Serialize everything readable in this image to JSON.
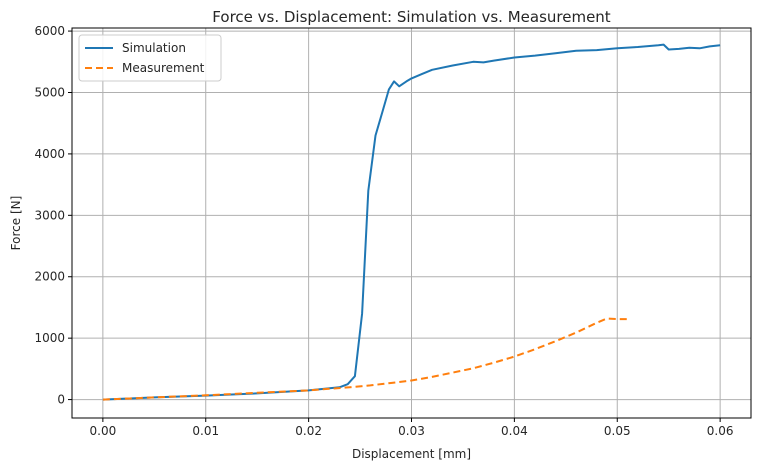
{
  "chart_data": {
    "type": "line",
    "title": "Force vs. Displacement: Simulation vs. Measurement",
    "xlabel": "Displacement [mm]",
    "ylabel": "Force [N]",
    "xlim": [
      -0.003,
      0.063
    ],
    "ylim": [
      -300,
      6050
    ],
    "xticks": [
      0.0,
      0.01,
      0.02,
      0.03,
      0.04,
      0.05,
      0.06
    ],
    "xtick_labels": [
      "0.00",
      "0.01",
      "0.02",
      "0.03",
      "0.04",
      "0.05",
      "0.06"
    ],
    "yticks": [
      0,
      1000,
      2000,
      3000,
      4000,
      5000,
      6000
    ],
    "ytick_labels": [
      "0",
      "1000",
      "2000",
      "3000",
      "4000",
      "5000",
      "6000"
    ],
    "grid": true,
    "legend_position": "top-left",
    "series": [
      {
        "name": "Simulation",
        "color": "#1f77b4",
        "style": "solid",
        "x": [
          0.0,
          0.005,
          0.01,
          0.015,
          0.02,
          0.023,
          0.0238,
          0.0245,
          0.0252,
          0.0258,
          0.0265,
          0.0272,
          0.0278,
          0.0283,
          0.0288,
          0.0295,
          0.03,
          0.031,
          0.032,
          0.034,
          0.036,
          0.037,
          0.038,
          0.04,
          0.042,
          0.044,
          0.046,
          0.048,
          0.05,
          0.052,
          0.054,
          0.0545,
          0.055,
          0.056,
          0.057,
          0.058,
          0.059,
          0.06
        ],
        "y": [
          0,
          35,
          65,
          100,
          150,
          200,
          250,
          380,
          1400,
          3400,
          4300,
          4700,
          5050,
          5180,
          5100,
          5180,
          5230,
          5300,
          5370,
          5440,
          5500,
          5490,
          5520,
          5570,
          5600,
          5640,
          5680,
          5690,
          5720,
          5740,
          5770,
          5780,
          5700,
          5710,
          5730,
          5720,
          5750,
          5770
        ]
      },
      {
        "name": "Measurement",
        "color": "#ff7f0e",
        "style": "dashed",
        "x": [
          0.0,
          0.005,
          0.01,
          0.015,
          0.02,
          0.022,
          0.024,
          0.026,
          0.028,
          0.03,
          0.032,
          0.034,
          0.036,
          0.038,
          0.04,
          0.042,
          0.044,
          0.046,
          0.048,
          0.049,
          0.05,
          0.051
        ],
        "y": [
          0,
          35,
          70,
          110,
          150,
          175,
          200,
          230,
          270,
          310,
          370,
          440,
          510,
          600,
          700,
          820,
          950,
          1090,
          1250,
          1320,
          1310,
          1310
        ]
      }
    ]
  }
}
